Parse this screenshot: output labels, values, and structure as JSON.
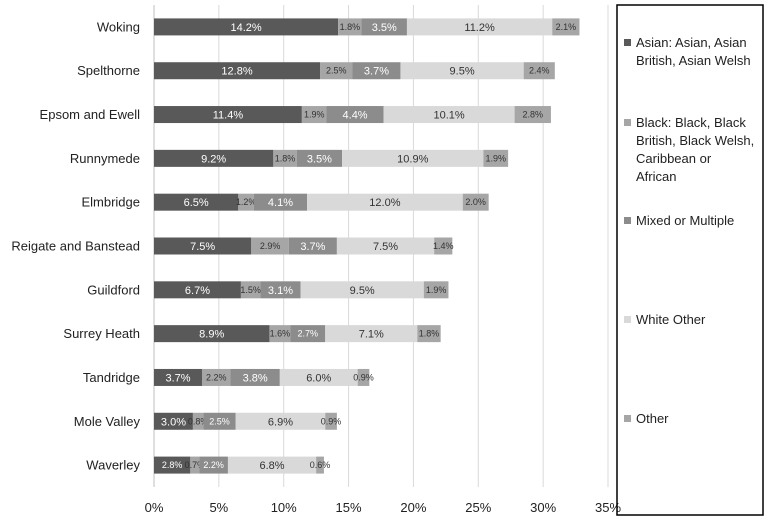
{
  "chart_data": {
    "type": "bar",
    "orientation": "horizontal",
    "stacked": true,
    "title": "",
    "xlabel": "",
    "ylabel": "",
    "xlim": [
      0,
      35
    ],
    "x_ticks": [
      "0%",
      "5%",
      "10%",
      "15%",
      "20%",
      "25%",
      "30%",
      "35%"
    ],
    "grid": "vertical",
    "legend_position": "right",
    "categories": [
      "Woking",
      "Spelthorne",
      "Epsom and Ewell",
      "Runnymede",
      "Elmbridge",
      "Reigate and Banstead",
      "Guildford",
      "Surrey Heath",
      "Tandridge",
      "Mole Valley",
      "Waverley"
    ],
    "series": [
      {
        "name": "Asian: Asian, Asian British, Asian Welsh",
        "color": "#595959",
        "values": [
          14.2,
          12.8,
          11.4,
          9.2,
          6.5,
          7.5,
          6.7,
          8.9,
          3.7,
          3.0,
          2.8
        ]
      },
      {
        "name": "Black: Black, Black British, Black Welsh, Caribbean or African",
        "color": "#a6a6a6",
        "values": [
          1.8,
          2.5,
          1.9,
          1.8,
          1.2,
          2.9,
          1.5,
          1.6,
          2.2,
          0.8,
          0.7
        ]
      },
      {
        "name": "Mixed or Multiple",
        "color": "#8c8c8c",
        "values": [
          3.5,
          3.7,
          4.4,
          3.5,
          4.1,
          3.7,
          3.1,
          2.7,
          3.8,
          2.5,
          2.2
        ]
      },
      {
        "name": "White Other",
        "color": "#d9d9d9",
        "values": [
          11.2,
          9.5,
          10.1,
          10.9,
          12.0,
          7.5,
          9.5,
          7.1,
          6.0,
          6.9,
          6.8
        ]
      },
      {
        "name": "Other",
        "color": "#a6a6a6",
        "values": [
          2.1,
          2.4,
          2.8,
          1.9,
          2.0,
          1.4,
          1.9,
          1.8,
          0.9,
          0.9,
          0.6
        ]
      }
    ],
    "legend_lines": [
      [
        "Asian: Asian, Asian",
        "British, Asian Welsh"
      ],
      [
        "Black: Black, Black",
        "British, Black Welsh,",
        "Caribbean or",
        "African"
      ],
      [
        "Mixed or Multiple"
      ],
      [
        "White Other"
      ],
      [
        "Other"
      ]
    ]
  }
}
